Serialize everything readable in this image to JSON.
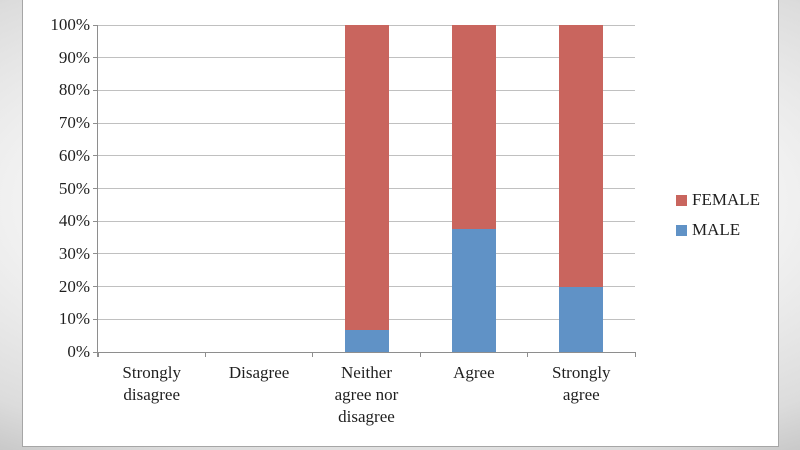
{
  "chart_data": {
    "type": "bar",
    "subtype": "stacked-100-percent-column",
    "title": "",
    "xlabel": "",
    "ylabel": "",
    "grid": true,
    "legend_position": "right",
    "categories": [
      "Strongly disagree",
      "Disagree",
      "Neither agree nor disagree",
      "Agree",
      "Strongly agree"
    ],
    "category_label_lines": [
      [
        "Strongly",
        "disagree"
      ],
      [
        "Disagree"
      ],
      [
        "Neither",
        "agree nor",
        "disagree"
      ],
      [
        "Agree"
      ],
      [
        "Strongly",
        "agree"
      ]
    ],
    "series": [
      {
        "name": "MALE",
        "color": "#6092c6",
        "values_percent": [
          null,
          null,
          6.7,
          37.5,
          20
        ]
      },
      {
        "name": "FEMALE",
        "color": "#c9655e",
        "values_percent": [
          null,
          null,
          93.3,
          62.5,
          80
        ]
      }
    ],
    "stack_order_bottom_to_top": [
      "MALE",
      "FEMALE"
    ],
    "legend_entries": [
      {
        "label": "FEMALE",
        "color": "#c9655e"
      },
      {
        "label": "MALE",
        "color": "#6092c6"
      }
    ],
    "y_axis": {
      "min": 0,
      "max": 100,
      "tick_step": 10,
      "tick_labels": [
        "0%",
        "10%",
        "20%",
        "30%",
        "40%",
        "50%",
        "60%",
        "70%",
        "80%",
        "90%",
        "100%"
      ]
    }
  },
  "colors": {
    "female_bar": "#c9655e",
    "male_bar": "#6092c6",
    "gridline": "#c0c0c0",
    "axis": "#8e8e8e",
    "text": "#1f1f1f",
    "canvas_bg": "#ffffff",
    "canvas_border": "#a6a6a6"
  }
}
